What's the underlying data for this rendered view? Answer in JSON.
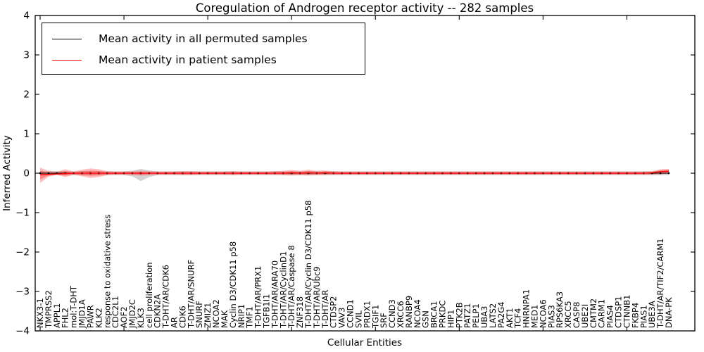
{
  "figure": {
    "title": "Coregulation of Androgen receptor activity -- 282 samples",
    "xlabel": "Cellular Entities",
    "ylabel": "Inferred Activity"
  },
  "legend": {
    "entries": [
      {
        "label": "Mean activity in all permuted samples",
        "color": "#000000"
      },
      {
        "label": "Mean activity in patient samples",
        "color": "#ff0000"
      }
    ]
  },
  "chart_data": {
    "type": "line",
    "title": "Coregulation of Androgen receptor activity -- 282 samples",
    "xlabel": "Cellular Entities",
    "ylabel": "Inferred Activity",
    "ylim": [
      -4,
      4
    ],
    "grid": false,
    "legend_position": "upper left",
    "yticks": [
      {
        "v": -4,
        "label": "−4"
      },
      {
        "v": -3,
        "label": "−3"
      },
      {
        "v": -2,
        "label": "−2"
      },
      {
        "v": -1,
        "label": "−1"
      },
      {
        "v": 0,
        "label": "0"
      },
      {
        "v": 1,
        "label": "1"
      },
      {
        "v": 2,
        "label": "2"
      },
      {
        "v": 3,
        "label": "3"
      },
      {
        "v": 4,
        "label": "4"
      }
    ],
    "categories": [
      "NKX3-1",
      "TMPRSS2",
      "APPL1",
      "FHL2",
      "mol:T-DHT",
      "JMJD1A",
      "PAWR",
      "KLK2",
      "response to oxidative stress",
      "CDC2L1",
      "AOF2",
      "JMJD2C",
      "KLK3",
      "cell proliferation",
      "CDKN2A",
      "T-DHT/AR/CDK6",
      "AR",
      "CDK6",
      "T-DHT/AR/SNURF",
      "SNURF",
      "ZMIZ1",
      "NCOA2",
      "MAK",
      "Cyclin D3/CDK11 p58",
      "NRIP1",
      "TMF1",
      "T-DHT/AR/PRX1",
      "TGFB1I1",
      "T-DHT/AR/ARA70",
      "T-DHT/AR/CyclinD1",
      "T-DHT/AR/Caspase 8",
      "ZNF318",
      "T-DHT/AR/Cyclin D3/CDK11 p58",
      "T-DHT/AR/Ubc9",
      "T-DHT/AR",
      "CTDSP2",
      "VAV3",
      "CCND1",
      "SVIL",
      "PRDX1",
      "TGIF1",
      "SRF",
      "CCND3",
      "XRCC6",
      "RANBP9",
      "NCOA4",
      "GSN",
      "BRCA1",
      "PRKDC",
      "HIP1",
      "PTK2B",
      "PATZ1",
      "PELP1",
      "UBA3",
      "LATS2",
      "PA2G4",
      "AKT1",
      "TCF4",
      "HNRNPA1",
      "MED1",
      "NCOA6",
      "PIAS3",
      "RPS6KA3",
      "XRCC5",
      "CASP8",
      "UBE2I",
      "CMTM2",
      "CARM1",
      "PIAS4",
      "CTDSP1",
      "CTNNB1",
      "FKBP4",
      "PIAS1",
      "UBE3A",
      "T-DHT/AR/TIF2/CARM1",
      "DNA-PK"
    ],
    "series": [
      {
        "name": "Mean activity in all permuted samples",
        "color": "#000000",
        "values": [
          0,
          0,
          0,
          0,
          0,
          0,
          0,
          0,
          0,
          0,
          0,
          0,
          0,
          0,
          0,
          0,
          0,
          0,
          0,
          0,
          0,
          0,
          0,
          0,
          0,
          0,
          0,
          0,
          0,
          0,
          0,
          0,
          0,
          0,
          0,
          0,
          0,
          0,
          0,
          0,
          0,
          0,
          0,
          0,
          0,
          0,
          0,
          0,
          0,
          0,
          0,
          0,
          0,
          0,
          0,
          0,
          0,
          0,
          0,
          0,
          0,
          0,
          0,
          0,
          0,
          0,
          0,
          0,
          0,
          0,
          0,
          0,
          0,
          0,
          0,
          0
        ]
      },
      {
        "name": "Mean activity in patient samples",
        "color": "#ff0000",
        "values": [
          -0.04,
          -0.03,
          -0.02,
          -0.01,
          0,
          0,
          0,
          0,
          0,
          0,
          0,
          0,
          0,
          0,
          0,
          0,
          0,
          0,
          0,
          0,
          0,
          0,
          0,
          0,
          0,
          0,
          0,
          0,
          0,
          0,
          0.01,
          0,
          0.01,
          0,
          0.01,
          0,
          0,
          0,
          0,
          0,
          0,
          0,
          0,
          0,
          0,
          0,
          0,
          0,
          0,
          0,
          0,
          0,
          0,
          0,
          0,
          0,
          0,
          0,
          0,
          0,
          0,
          0,
          0,
          0,
          0,
          0,
          0,
          0,
          0,
          0,
          0,
          0,
          0,
          0.01,
          0.04,
          0.05
        ]
      }
    ],
    "bands": [
      {
        "name": "permuted-samples-band",
        "color": "#969696",
        "alpha": 0.42,
        "lower": [
          -0.05,
          -0.05,
          -0.05,
          -0.05,
          -0.05,
          -0.05,
          -0.05,
          -0.05,
          -0.05,
          -0.05,
          -0.05,
          -0.08,
          -0.2,
          -0.1,
          -0.05,
          -0.05,
          -0.05,
          -0.05,
          -0.05,
          -0.05,
          -0.05,
          -0.05,
          -0.05,
          -0.05,
          -0.05,
          -0.05,
          -0.05,
          -0.05,
          -0.05,
          -0.05,
          -0.05,
          -0.05,
          -0.05,
          -0.05,
          -0.05,
          -0.05,
          -0.05,
          -0.05,
          -0.05,
          -0.05,
          -0.05,
          -0.05,
          -0.05,
          -0.05,
          -0.05,
          -0.05,
          -0.05,
          -0.05,
          -0.05,
          -0.05,
          -0.05,
          -0.05,
          -0.05,
          -0.05,
          -0.05,
          -0.05,
          -0.05,
          -0.05,
          -0.05,
          -0.05,
          -0.05,
          -0.05,
          -0.05,
          -0.05,
          -0.05,
          -0.05,
          -0.05,
          -0.05,
          -0.05,
          -0.05,
          -0.05,
          -0.05,
          -0.05,
          -0.05,
          -0.05,
          -0.05
        ],
        "upper": [
          0.05,
          0.05,
          0.05,
          0.05,
          0.05,
          0.05,
          0.05,
          0.05,
          0.05,
          0.05,
          0.05,
          0.06,
          0.11,
          0.07,
          0.05,
          0.05,
          0.05,
          0.05,
          0.05,
          0.05,
          0.05,
          0.05,
          0.05,
          0.05,
          0.05,
          0.05,
          0.05,
          0.05,
          0.05,
          0.05,
          0.05,
          0.05,
          0.05,
          0.05,
          0.05,
          0.05,
          0.05,
          0.05,
          0.05,
          0.05,
          0.05,
          0.05,
          0.05,
          0.05,
          0.05,
          0.05,
          0.05,
          0.05,
          0.05,
          0.05,
          0.05,
          0.05,
          0.05,
          0.05,
          0.05,
          0.05,
          0.05,
          0.05,
          0.05,
          0.05,
          0.05,
          0.05,
          0.05,
          0.05,
          0.05,
          0.05,
          0.05,
          0.05,
          0.05,
          0.05,
          0.05,
          0.05,
          0.05,
          0.05,
          0.05,
          0.05
        ]
      },
      {
        "name": "patient-samples-band",
        "color": "#ff2a2a",
        "alpha": 0.3,
        "lower": [
          -0.25,
          -0.09,
          -0.04,
          -0.1,
          -0.04,
          -0.08,
          -0.12,
          -0.1,
          -0.05,
          -0.04,
          -0.04,
          -0.05,
          -0.06,
          -0.05,
          -0.04,
          -0.04,
          -0.04,
          -0.05,
          -0.05,
          -0.04,
          -0.04,
          -0.04,
          -0.04,
          -0.05,
          -0.04,
          -0.04,
          -0.04,
          -0.04,
          -0.04,
          -0.05,
          -0.06,
          -0.05,
          -0.06,
          -0.05,
          -0.05,
          -0.04,
          -0.04,
          -0.04,
          -0.04,
          -0.04,
          -0.04,
          -0.04,
          -0.04,
          -0.04,
          -0.04,
          -0.04,
          -0.04,
          -0.04,
          -0.04,
          -0.04,
          -0.04,
          -0.04,
          -0.04,
          -0.04,
          -0.04,
          -0.04,
          -0.04,
          -0.04,
          -0.04,
          -0.04,
          -0.04,
          -0.04,
          -0.04,
          -0.04,
          -0.04,
          -0.04,
          -0.04,
          -0.04,
          -0.04,
          -0.04,
          -0.04,
          -0.04,
          -0.04,
          -0.04,
          -0.03,
          -0.01
        ],
        "upper": [
          0.14,
          0.06,
          0.04,
          0.1,
          0.04,
          0.09,
          0.12,
          0.1,
          0.05,
          0.04,
          0.04,
          0.05,
          0.06,
          0.05,
          0.04,
          0.04,
          0.04,
          0.05,
          0.05,
          0.04,
          0.04,
          0.04,
          0.04,
          0.05,
          0.04,
          0.04,
          0.04,
          0.04,
          0.05,
          0.06,
          0.08,
          0.06,
          0.09,
          0.06,
          0.07,
          0.05,
          0.04,
          0.04,
          0.04,
          0.04,
          0.04,
          0.04,
          0.04,
          0.04,
          0.04,
          0.04,
          0.04,
          0.04,
          0.04,
          0.04,
          0.04,
          0.04,
          0.04,
          0.04,
          0.04,
          0.04,
          0.04,
          0.04,
          0.04,
          0.04,
          0.04,
          0.04,
          0.04,
          0.04,
          0.04,
          0.04,
          0.04,
          0.04,
          0.04,
          0.04,
          0.04,
          0.04,
          0.04,
          0.05,
          0.1,
          0.11
        ]
      }
    ]
  }
}
